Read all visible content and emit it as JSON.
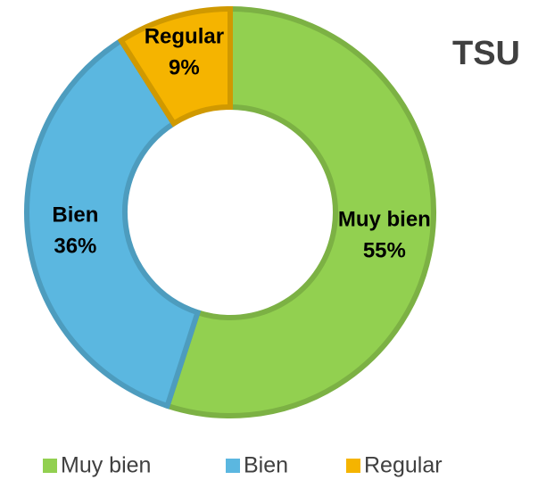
{
  "chart_data": {
    "type": "donut",
    "title": "TSU",
    "categories": [
      "Muy bien",
      "Bien",
      "Regular"
    ],
    "values": [
      55,
      36,
      9
    ],
    "value_labels": [
      "55%",
      "36%",
      "9%"
    ],
    "colors": [
      "#92d050",
      "#5bb7e0",
      "#f5b400"
    ],
    "legend": "bottom"
  }
}
